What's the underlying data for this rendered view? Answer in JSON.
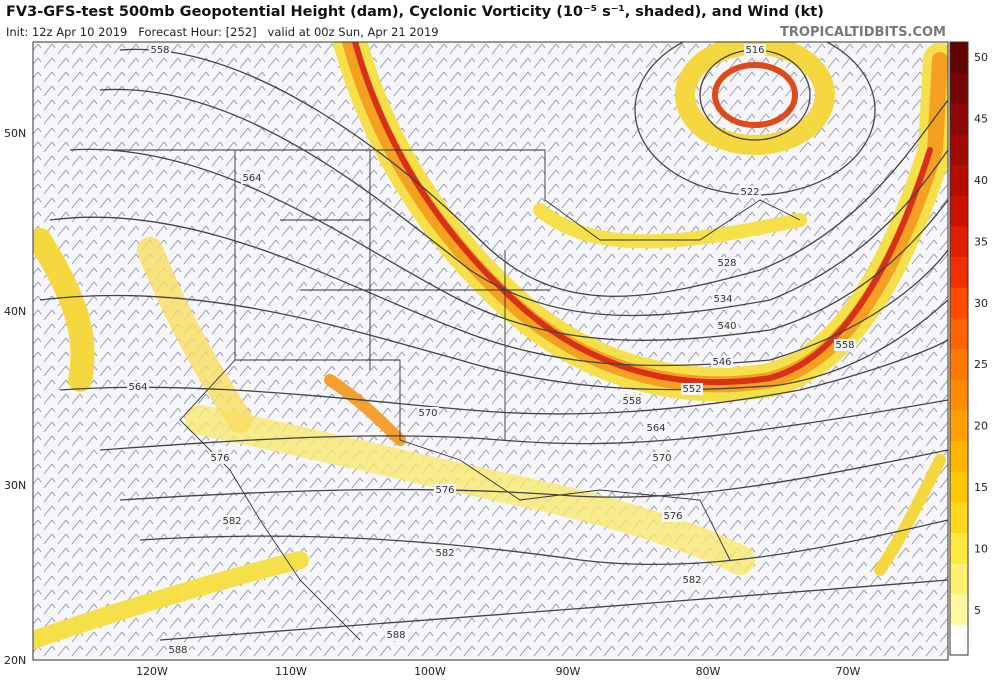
{
  "header": {
    "title": "FV3-GFS-test 500mb Geopotential Height (dam), Cyclonic Vorticity (10⁻⁵ s⁻¹, shaded), and Wind (kt)",
    "init": "Init: 12z Apr 10 2019   Forecast Hour: [252]   valid at 00z Sun, Apr 21 2019",
    "site": "TROPICALTIDBITS.COM"
  },
  "colorbar": {
    "labels": [
      "50",
      "45",
      "40",
      "35",
      "30",
      "25",
      "20",
      "15",
      "10",
      "5"
    ]
  },
  "axes": {
    "lat": [
      "50N",
      "40N",
      "30N",
      "20N"
    ],
    "lon": [
      "120W",
      "110W",
      "100W",
      "90W",
      "80W",
      "70W"
    ]
  },
  "contour_labels": [
    "558",
    "516",
    "564",
    "522",
    "528",
    "534",
    "540",
    "546",
    "552",
    "558",
    "558",
    "564",
    "570",
    "564",
    "570",
    "576",
    "576",
    "576",
    "582",
    "582",
    "582",
    "588",
    "588"
  ]
}
